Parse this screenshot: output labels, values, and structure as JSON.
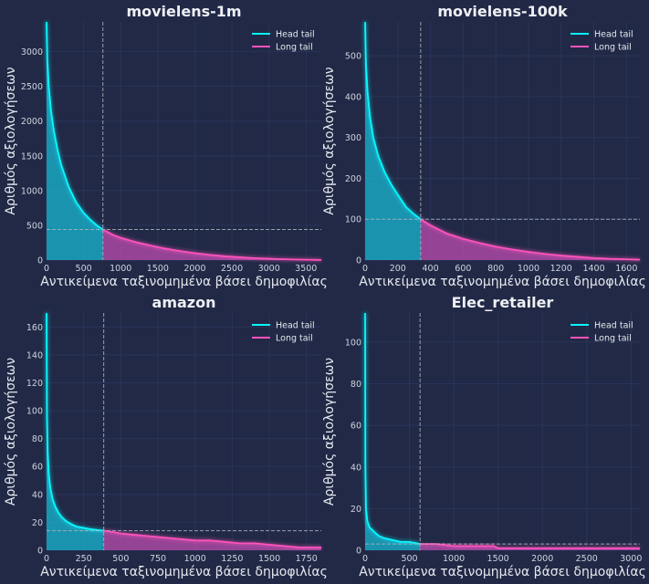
{
  "colors": {
    "background": "#212946",
    "grid": "#2A3459",
    "head_tail": "#18C0DB",
    "head_tail_line": "#08F7FE",
    "long_tail": "#C84FB6",
    "long_tail_line": "#FE53BB",
    "reference_line": "#AEB3BD"
  },
  "chart_data": [
    {
      "type": "area",
      "title": "movielens-1m",
      "xlabel": "Αντικείμενα ταξινομημένα βάσει δημοφιλίας",
      "ylabel": "Αριθμός αξιολογήσεων",
      "xlim": [
        0,
        3706
      ],
      "ylim": [
        0,
        3428
      ],
      "xticks": [
        0,
        500,
        1000,
        1500,
        2000,
        2500,
        3000,
        3500
      ],
      "yticks": [
        0,
        500,
        1000,
        1500,
        2000,
        2500,
        3000
      ],
      "cutoff_x": 760,
      "cutoff_y": 440,
      "legend": [
        "Head tail",
        "Long tail"
      ],
      "legend_position": "top-right",
      "grid": true,
      "series": {
        "x": [
          0,
          10,
          30,
          60,
          100,
          150,
          200,
          300,
          400,
          500,
          600,
          700,
          760,
          900,
          1000,
          1200,
          1400,
          1600,
          1800,
          2000,
          2200,
          2400,
          2600,
          2800,
          3000,
          3200,
          3400,
          3600,
          3706
        ],
        "y": [
          3428,
          2900,
          2500,
          2150,
          1850,
          1580,
          1360,
          1050,
          830,
          680,
          570,
          480,
          440,
          360,
          320,
          260,
          210,
          165,
          130,
          100,
          75,
          55,
          40,
          28,
          20,
          12,
          7,
          3,
          1
        ]
      }
    },
    {
      "type": "area",
      "title": "movielens-100k",
      "xlabel": "Αντικείμενα ταξινομημένα βάσει δημοφιλίας",
      "ylabel": "Αριθμός αξιολογήσεων",
      "xlim": [
        0,
        1682
      ],
      "ylim": [
        0,
        583
      ],
      "xticks": [
        0,
        200,
        400,
        600,
        800,
        1000,
        1200,
        1400,
        1600
      ],
      "yticks": [
        0,
        100,
        200,
        300,
        400,
        500
      ],
      "cutoff_x": 340,
      "cutoff_y": 100,
      "legend": [
        "Head tail",
        "Long tail"
      ],
      "legend_position": "top-right",
      "grid": true,
      "series": {
        "x": [
          0,
          5,
          15,
          30,
          50,
          80,
          120,
          160,
          200,
          250,
          300,
          340,
          400,
          500,
          600,
          700,
          800,
          900,
          1000,
          1100,
          1200,
          1300,
          1400,
          1500,
          1600,
          1682
        ],
        "y": [
          583,
          480,
          410,
          350,
          300,
          255,
          215,
          185,
          160,
          130,
          112,
          100,
          85,
          65,
          52,
          42,
          33,
          26,
          20,
          15,
          11,
          8,
          5,
          3,
          2,
          1
        ]
      }
    },
    {
      "type": "area",
      "title": "amazon",
      "xlabel": "Αντικείμενα ταξινομημένα βάσει δημοφιλίας",
      "ylabel": "Αριθμός αξιολογήσεων",
      "xlim": [
        0,
        1850
      ],
      "ylim": [
        0,
        170
      ],
      "xticks": [
        0,
        250,
        500,
        750,
        1000,
        1250,
        1500,
        1750
      ],
      "yticks": [
        0,
        20,
        40,
        60,
        80,
        100,
        120,
        140,
        160
      ],
      "cutoff_x": 385,
      "cutoff_y": 14,
      "legend": [
        "Head tail",
        "Long tail"
      ],
      "legend_position": "top-right",
      "grid": true,
      "series": {
        "x": [
          0,
          3,
          8,
          15,
          25,
          40,
          60,
          80,
          100,
          130,
          160,
          200,
          250,
          300,
          385,
          450,
          500,
          600,
          700,
          800,
          900,
          1000,
          1100,
          1200,
          1300,
          1400,
          1500,
          1600,
          1700,
          1850
        ],
        "y": [
          170,
          95,
          70,
          55,
          45,
          37,
          31,
          27,
          24,
          21,
          19,
          17,
          16,
          15,
          14,
          13,
          12,
          11,
          10,
          9,
          8,
          7,
          7,
          6,
          5,
          5,
          4,
          3,
          2,
          2
        ]
      }
    },
    {
      "type": "area",
      "title": "Elec_retailer",
      "xlabel": "Αντικείμενα ταξινομημένα βάσει δημοφιλίας",
      "ylabel": "Αριθμός αξιολογήσεων",
      "xlim": [
        0,
        3100
      ],
      "ylim": [
        0,
        114
      ],
      "xticks": [
        0,
        500,
        1000,
        1500,
        2000,
        2500,
        3000
      ],
      "yticks": [
        0,
        20,
        40,
        60,
        80,
        100
      ],
      "cutoff_x": 620,
      "cutoff_y": 3,
      "legend": [
        "Head tail",
        "Long tail"
      ],
      "legend_position": "top-right",
      "grid": true,
      "series": {
        "x": [
          0,
          3,
          10,
          25,
          50,
          100,
          150,
          200,
          300,
          400,
          500,
          620,
          800,
          1000,
          1200,
          1450,
          1500,
          2000,
          2500,
          3000,
          3100
        ],
        "y": [
          114,
          40,
          20,
          14,
          11,
          9,
          7,
          6,
          5,
          4,
          4,
          3,
          3,
          2,
          2,
          2,
          1,
          1,
          1,
          1,
          1
        ]
      }
    }
  ]
}
